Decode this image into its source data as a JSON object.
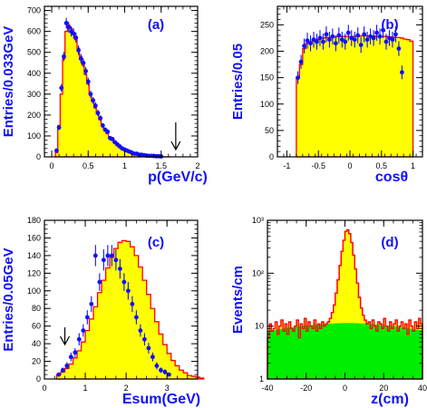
{
  "colors": {
    "fill": "#ffff00",
    "hist_line": "#ff0000",
    "points": "#1010ff",
    "bkg": "#00ee00",
    "text": "#1010ff"
  },
  "chart_data": [
    {
      "panel": "(a)",
      "type": "histogram",
      "xlabel": "p(GeV/c)",
      "ylabel": "Entries/0.033GeV",
      "xlim": [
        -0.1,
        2.0
      ],
      "ylim": [
        0,
        720
      ],
      "ylog": false,
      "xticks": [
        0,
        0.5,
        1,
        1.5,
        2
      ],
      "xticklabels": [
        "0",
        "0.5",
        "1",
        "1.5",
        "2"
      ],
      "yticks": [
        0,
        100,
        200,
        300,
        400,
        500,
        600,
        700
      ],
      "yticklabels": [
        "0",
        "100",
        "200",
        "300",
        "400",
        "500",
        "600",
        "700"
      ],
      "xminor": 0.1,
      "yminor": 20,
      "hist": {
        "x_start": 0.05,
        "width": 0.033,
        "values": [
          20,
          150,
          300,
          470,
          600,
          630,
          615,
          590,
          560,
          520,
          480,
          440,
          395,
          350,
          305,
          265,
          235,
          205,
          178,
          155,
          133,
          112,
          95,
          80,
          68,
          57,
          47,
          39,
          32,
          26,
          21,
          17,
          13,
          10,
          8,
          6,
          5,
          4,
          3,
          2,
          2,
          1,
          1,
          1,
          0,
          0,
          0,
          0
        ]
      },
      "points": {
        "x": [
          0.067,
          0.1,
          0.133,
          0.167,
          0.2,
          0.233,
          0.267,
          0.3,
          0.333,
          0.367,
          0.4,
          0.433,
          0.467,
          0.5,
          0.533,
          0.567,
          0.6,
          0.633,
          0.667,
          0.7,
          0.733,
          0.767,
          0.8,
          0.833,
          0.867,
          0.9,
          0.933,
          0.967,
          1.0,
          1.033,
          1.067,
          1.1,
          1.133,
          1.167,
          1.2,
          1.233,
          1.267,
          1.3,
          1.333,
          1.367,
          1.4,
          1.433,
          1.467,
          1.5
        ],
        "y": [
          30,
          140,
          330,
          480,
          640,
          620,
          600,
          590,
          570,
          510,
          470,
          450,
          410,
          360,
          300,
          270,
          245,
          210,
          185,
          150,
          130,
          120,
          90,
          85,
          70,
          60,
          50,
          40,
          35,
          30,
          25,
          20,
          15,
          15,
          10,
          10,
          8,
          6,
          5,
          5,
          4,
          3,
          3,
          2
        ],
        "err": [
          6,
          12,
          18,
          22,
          25,
          25,
          25,
          24,
          24,
          23,
          22,
          21,
          20,
          19,
          17,
          16,
          16,
          15,
          14,
          12,
          11,
          11,
          10,
          9,
          8,
          8,
          7,
          6,
          6,
          5,
          5,
          4,
          4,
          4,
          3,
          3,
          3,
          2,
          2,
          2,
          2,
          2,
          2,
          1
        ]
      },
      "arrow_x": 1.7
    },
    {
      "panel": "(b)",
      "type": "histogram",
      "xlabel": "cosθ",
      "ylabel": "Entries/0.05",
      "xlim": [
        -1.15,
        1.15
      ],
      "ylim": [
        0,
        285
      ],
      "ylog": false,
      "xticks": [
        -1,
        -0.5,
        0,
        0.5,
        1
      ],
      "xticklabels": [
        "-1",
        "-0.5",
        "0",
        "0.5",
        "1"
      ],
      "yticks": [
        0,
        50,
        100,
        150,
        200,
        250
      ],
      "yticklabels": [
        "0",
        "50",
        "100",
        "150",
        "200",
        "250"
      ],
      "xminor": 0.1,
      "yminor": 10,
      "hist": {
        "x_start": -0.85,
        "width": 0.05,
        "values": [
          150,
          175,
          205,
          215,
          218,
          220,
          222,
          224,
          225,
          226,
          226,
          227,
          227,
          228,
          228,
          228,
          228,
          228,
          228,
          228,
          229,
          229,
          229,
          229,
          229,
          228,
          228,
          228,
          228,
          227,
          227,
          226,
          226,
          225,
          223,
          222,
          219
        ]
      },
      "points": {
        "x": [
          -0.825,
          -0.775,
          -0.725,
          -0.675,
          -0.625,
          -0.575,
          -0.525,
          -0.475,
          -0.425,
          -0.375,
          -0.325,
          -0.275,
          -0.225,
          -0.175,
          -0.125,
          -0.075,
          -0.025,
          0.025,
          0.075,
          0.125,
          0.175,
          0.225,
          0.275,
          0.325,
          0.375,
          0.425,
          0.475,
          0.525,
          0.575,
          0.625,
          0.675,
          0.725,
          0.775,
          0.825
        ],
        "y": [
          150,
          180,
          210,
          220,
          215,
          222,
          218,
          225,
          218,
          232,
          222,
          228,
          215,
          230,
          222,
          218,
          235,
          225,
          222,
          230,
          212,
          232,
          222,
          228,
          225,
          235,
          228,
          240,
          218,
          225,
          222,
          232,
          205,
          160
        ],
        "err": [
          12,
          13,
          14,
          15,
          15,
          15,
          15,
          15,
          15,
          15,
          15,
          15,
          15,
          15,
          15,
          15,
          15,
          15,
          15,
          15,
          15,
          15,
          15,
          15,
          15,
          15,
          15,
          15,
          15,
          15,
          15,
          15,
          14,
          13
        ]
      }
    },
    {
      "panel": "(c)",
      "type": "histogram",
      "xlabel": "Esum(GeV)",
      "ylabel": "Entries/0.05GeV",
      "xlim": [
        0,
        3.75
      ],
      "ylim": [
        0,
        180
      ],
      "ylog": false,
      "xticks": [
        0,
        1,
        2,
        3
      ],
      "xticklabels": [
        "0",
        "1",
        "2",
        "3"
      ],
      "yticks": [
        0,
        20,
        40,
        60,
        80,
        100,
        120,
        140,
        160,
        180
      ],
      "yticklabels": [
        "0",
        "20",
        "40",
        "60",
        "80",
        "100",
        "120",
        "140",
        "160",
        "180"
      ],
      "xminor": 0.25,
      "yminor": 5,
      "hist": {
        "x_start": 0.3,
        "width": 0.1,
        "values": [
          5,
          8,
          12,
          17,
          24,
          32,
          42,
          55,
          68,
          82,
          98,
          112,
          126,
          138,
          148,
          155,
          157,
          156,
          150,
          140,
          127,
          112,
          96,
          80,
          65,
          51,
          39,
          29,
          21,
          15,
          10,
          7,
          4,
          3,
          2,
          1
        ]
      },
      "points": {
        "x": [
          0.35,
          0.45,
          0.55,
          0.65,
          0.75,
          0.85,
          0.95,
          1.05,
          1.15,
          1.25,
          1.35,
          1.45,
          1.55,
          1.65,
          1.75,
          1.85,
          1.95,
          2.05,
          2.15,
          2.25,
          2.35,
          2.45,
          2.55,
          2.65,
          2.75,
          2.85,
          2.95,
          3.05
        ],
        "y": [
          5,
          10,
          15,
          25,
          30,
          45,
          55,
          70,
          85,
          140,
          110,
          135,
          140,
          140,
          135,
          125,
          110,
          100,
          85,
          70,
          55,
          45,
          35,
          25,
          15,
          10,
          8,
          5
        ],
        "err": [
          2,
          3,
          4,
          5,
          5,
          7,
          7,
          8,
          9,
          12,
          10,
          12,
          12,
          12,
          12,
          11,
          10,
          10,
          9,
          8,
          7,
          7,
          6,
          5,
          4,
          3,
          3,
          2
        ]
      },
      "arrow_x": 0.5
    },
    {
      "panel": "(d)",
      "type": "histogram",
      "xlabel": "z(cm)",
      "ylabel": "Events/cm",
      "xlim": [
        -40,
        40
      ],
      "ylim": [
        1,
        1000
      ],
      "ylog": true,
      "xticks": [
        -40,
        -20,
        0,
        20,
        40
      ],
      "xticklabels": [
        "-40",
        "-20",
        "0",
        "20",
        "40"
      ],
      "yticks": [
        1,
        10,
        100,
        1000
      ],
      "yticklabels": [
        "1",
        "10",
        "10²",
        "10³"
      ],
      "xminor": 5,
      "background": {
        "x_start": -40,
        "width": 1,
        "values": [
          8.0,
          8.1,
          8.2,
          8.3,
          8.5,
          8.6,
          8.7,
          8.8,
          8.9,
          9.0,
          9.2,
          9.3,
          9.4,
          9.5,
          9.6,
          9.7,
          9.8,
          9.9,
          10.0,
          10.1,
          10.2,
          10.2,
          10.3,
          10.4,
          10.5,
          10.6,
          10.7,
          10.7,
          10.8,
          10.9,
          10.9,
          11.0,
          11.0,
          11.1,
          11.1,
          11.2,
          11.2,
          11.2,
          11.3,
          11.3,
          11.3,
          11.3,
          11.3,
          11.3,
          11.2,
          11.2,
          11.2,
          11.1,
          11.1,
          11.0,
          11.0,
          10.9,
          10.9,
          10.8,
          10.7,
          10.7,
          10.6,
          10.5,
          10.4,
          10.3,
          10.2,
          10.2,
          10.1,
          10.0,
          9.9,
          9.8,
          9.7,
          9.6,
          9.5,
          9.4,
          9.3,
          9.2,
          9.0,
          8.9,
          8.8,
          8.7,
          8.6,
          8.5,
          8.3,
          8.2
        ]
      },
      "hist": {
        "x_start": -40,
        "width": 1,
        "values": [
          6,
          11,
          8,
          9,
          12,
          7,
          10,
          13,
          8,
          11,
          7,
          12,
          9,
          8,
          10,
          13,
          6,
          11,
          9,
          14,
          8,
          12,
          10,
          9,
          13,
          8,
          11,
          9,
          12,
          10,
          11,
          12,
          14,
          18,
          25,
          42,
          75,
          140,
          260,
          420,
          620,
          660,
          560,
          380,
          220,
          120,
          65,
          35,
          22,
          16,
          13,
          11,
          12,
          9,
          13,
          10,
          8,
          12,
          11,
          9,
          14,
          10,
          8,
          12,
          9,
          11,
          13,
          8,
          10,
          12,
          9,
          11,
          7,
          13,
          10,
          8,
          12,
          9,
          14,
          11
        ]
      }
    }
  ]
}
